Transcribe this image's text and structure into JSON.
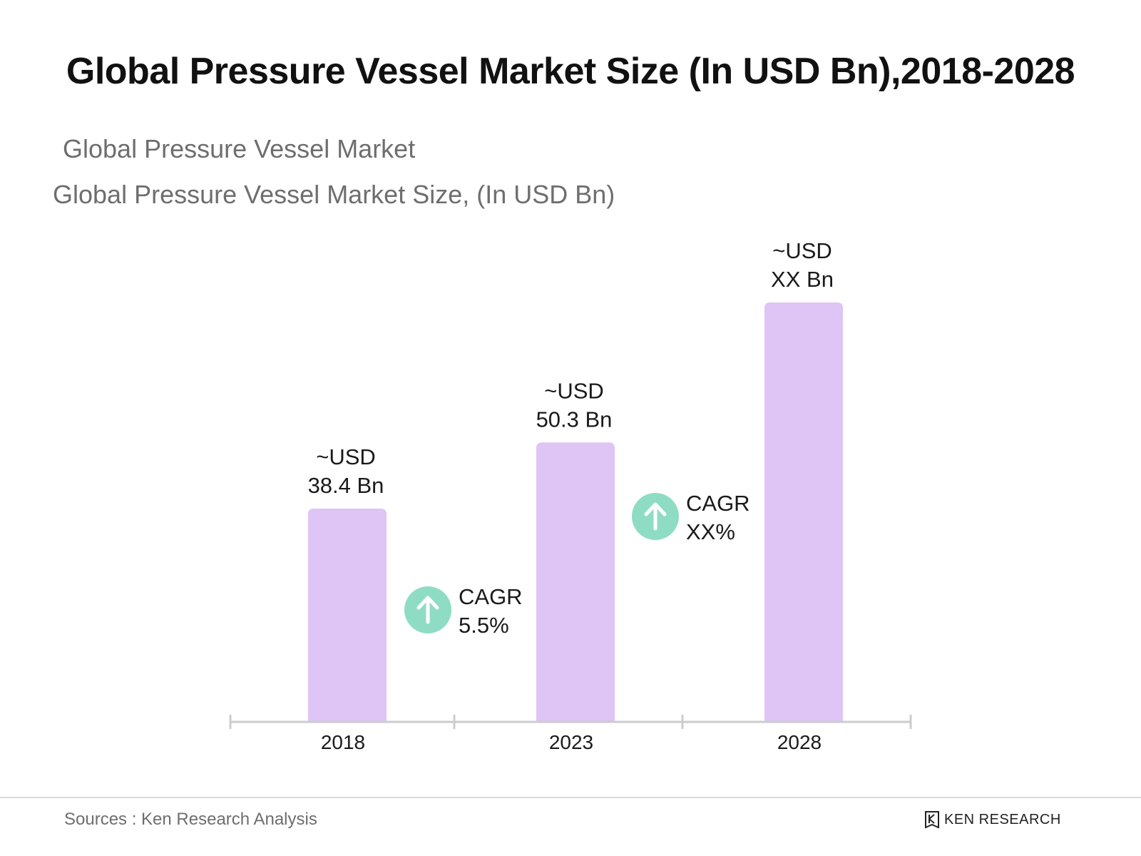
{
  "colors": {
    "bar": "#dfc4f6",
    "cagr_circle": "#8fdcc4",
    "axis": "#cccccc",
    "label_text": "#1a1a1a"
  },
  "chart_data": {
    "type": "bar",
    "title": "Global Pressure Vessel Market Size (In USD Bn),2018-2028",
    "subtitle": "Global Pressure Vessel Market",
    "ylabel": "Global Pressure Vessel Market Size, (In USD Bn)",
    "xlabel": "",
    "categories": [
      "2018",
      "2023",
      "2028"
    ],
    "values": [
      38.4,
      50.3,
      75.5
    ],
    "value_labels": [
      [
        "~USD",
        "38.4 Bn"
      ],
      [
        "~USD",
        "50.3 Bn"
      ],
      [
        "~USD",
        "XX Bn"
      ]
    ],
    "ylim": [
      0,
      80
    ],
    "grid": false,
    "annotations": [
      {
        "between": [
          0,
          1
        ],
        "label": "CAGR",
        "value": "5.5%",
        "icon": "arrow-up-icon"
      },
      {
        "between": [
          1,
          2
        ],
        "label": "CAGR",
        "value": "XX%",
        "icon": "arrow-up-icon"
      }
    ]
  },
  "footer": {
    "source": "Sources : Ken Research Analysis",
    "brand": "KEN RESEARCH",
    "brand_icon": "ken-research-logo-icon"
  }
}
